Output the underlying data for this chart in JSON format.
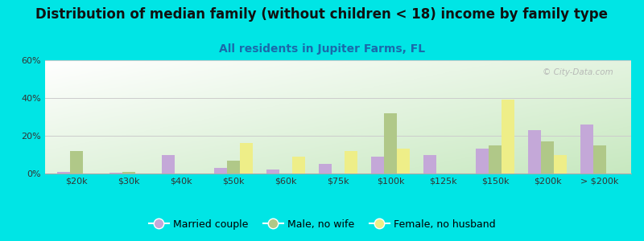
{
  "title": "Distribution of median family (without children < 18) income by family type",
  "subtitle": "All residents in Jupiter Farms, FL",
  "categories": [
    "$20k",
    "$30k",
    "$40k",
    "$50k",
    "$60k",
    "$75k",
    "$100k",
    "$125k",
    "$150k",
    "$200k",
    "> $200k"
  ],
  "married_couple": [
    1,
    0.5,
    10,
    3,
    2,
    5,
    9,
    10,
    13,
    23,
    26
  ],
  "male_no_wife": [
    12,
    1,
    0,
    7,
    0,
    0,
    32,
    0,
    15,
    17,
    15
  ],
  "female_no_husband": [
    0,
    0,
    0,
    16,
    9,
    12,
    13,
    0,
    39,
    10,
    0
  ],
  "color_married": "#c4a8d8",
  "color_male": "#b0c888",
  "color_female": "#eeee88",
  "bg_color": "#00e5e5",
  "ylim": [
    0,
    60
  ],
  "yticks": [
    0,
    20,
    40,
    60
  ],
  "ytick_labels": [
    "0%",
    "20%",
    "40%",
    "60%"
  ],
  "watermark": "© City-Data.com",
  "legend_labels": [
    "Married couple",
    "Male, no wife",
    "Female, no husband"
  ],
  "title_fontsize": 12,
  "subtitle_fontsize": 10,
  "subtitle_color": "#1a6aaa",
  "bar_width": 0.25
}
